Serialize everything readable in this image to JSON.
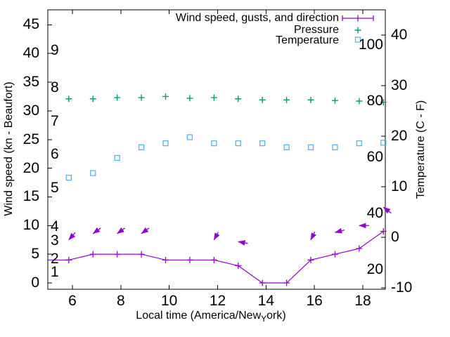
{
  "chart_data": {
    "type": "line",
    "title": "",
    "xlabel": {
      "pre": "Local time (America/New",
      "sub": "Y",
      "post": "ork)"
    },
    "ylabel_left": "Wind speed (kn - Beaufort)",
    "ylabel_right": "Temperature (C - F)",
    "x_hours": [
      5.85,
      6.85,
      7.85,
      8.85,
      9.85,
      10.85,
      11.85,
      12.85,
      13.85,
      14.85,
      15.85,
      16.85,
      17.85,
      18.85
    ],
    "series": [
      {
        "name": "Wind speed, gusts, and direction",
        "type": "errorbar-line",
        "color": "#9400d3",
        "marker": "plus",
        "values_kn": [
          4,
          5,
          5,
          5,
          4,
          4,
          4,
          3,
          0,
          0,
          4,
          5,
          6,
          9
        ]
      },
      {
        "name": "Pressure",
        "type": "points",
        "color": "#009e73",
        "marker": "plus",
        "values_on_kn_scale": [
          32.1,
          32.1,
          32.3,
          32.3,
          32.5,
          32.2,
          32.3,
          32.1,
          31.9,
          31.9,
          31.9,
          31.8,
          31.7,
          31.5
        ]
      },
      {
        "name": "Temperature",
        "type": "points",
        "color": "#56b4e9",
        "marker": "open-square",
        "values_c": [
          11.8,
          12.7,
          15.7,
          17.8,
          18.6,
          19.8,
          18.6,
          18.6,
          18.6,
          17.8,
          17.8,
          17.8,
          18.6,
          18.7
        ]
      }
    ],
    "gust_arrows": [
      {
        "t": 5.85,
        "kn": 7.5,
        "dx": -0.66,
        "dy": 0.75
      },
      {
        "t": 6.85,
        "kn": 8.6,
        "dx": -0.78,
        "dy": 0.57
      },
      {
        "t": 7.85,
        "kn": 8.6,
        "dx": -0.78,
        "dy": 0.57
      },
      {
        "t": 8.85,
        "kn": 8.6,
        "dx": -0.78,
        "dy": 0.57
      },
      {
        "t": 11.85,
        "kn": 7.5,
        "dx": -0.43,
        "dy": 0.8
      },
      {
        "t": 12.85,
        "kn": 7.2,
        "dx": -0.98,
        "dy": -0.18
      },
      {
        "t": 15.85,
        "kn": 7.5,
        "dx": -0.41,
        "dy": 0.82
      },
      {
        "t": 16.85,
        "kn": 8.8,
        "dx": -0.97,
        "dy": 0.25
      },
      {
        "t": 17.85,
        "kn": 10.0,
        "dx": -1.0,
        "dy": 0.0
      },
      {
        "t": 18.85,
        "kn": 13.2,
        "dx": -0.8,
        "dy": -0.6
      }
    ],
    "axes": {
      "x": {
        "ticks": [
          "6",
          "8",
          "10",
          "12",
          "14",
          "16",
          "18"
        ],
        "range": [
          5,
          18.94
        ],
        "grid": false
      },
      "y_wind": {
        "ticks": [
          "0",
          "5",
          "10",
          "15",
          "20",
          "25",
          "30",
          "35",
          "40",
          "45"
        ],
        "range": [
          -1,
          47.6
        ]
      },
      "y_beaufort": [
        {
          "label": "1",
          "kn": 1.8
        },
        {
          "label": "2",
          "kn": 4.2
        },
        {
          "label": "3",
          "kn": 7.3
        },
        {
          "label": "4",
          "kn": 9.8
        },
        {
          "label": "5",
          "kn": 16.5
        },
        {
          "label": "6",
          "kn": 22.4
        },
        {
          "label": "7",
          "kn": 28.1
        },
        {
          "label": "8",
          "kn": 34.0
        },
        {
          "label": "9",
          "kn": 40.5
        }
      ],
      "y_celsius": {
        "ticks": [
          "-10",
          "0",
          "10",
          "20",
          "30",
          "40"
        ],
        "range": [
          -10.6,
          45
        ]
      },
      "y_fahrenheit_labels": [
        "20",
        "40",
        "60",
        "80",
        "100"
      ]
    },
    "legend": {
      "position": "top-right-inside"
    },
    "colors": {
      "axis": "#000000",
      "background": "#ffffff"
    }
  }
}
